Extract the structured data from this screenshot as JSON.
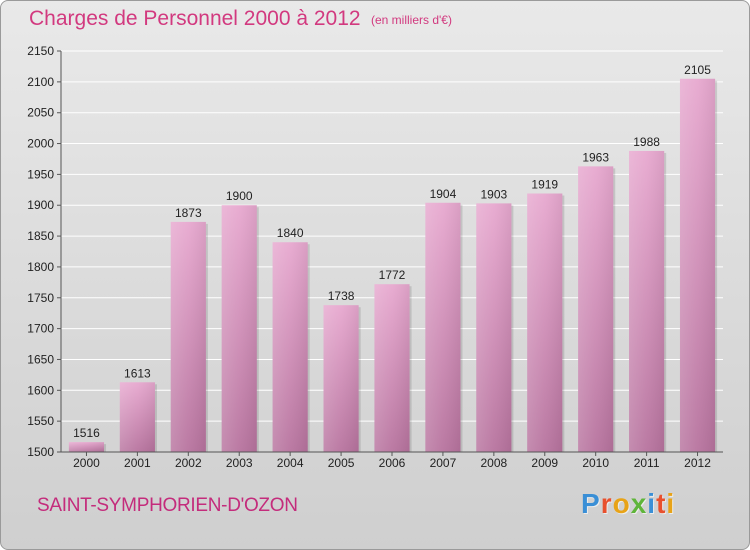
{
  "title": "Charges de Personnel 2000 à 2012",
  "subtitle": "(en milliers d'€)",
  "commune": "SAINT-SYMPHORIEN-D'OZON",
  "logo": {
    "letters": [
      "P",
      "r",
      "o",
      "x",
      "i",
      "t",
      "i"
    ],
    "colors": [
      "#3a8fd6",
      "#e8502d",
      "#e8a317",
      "#5fb53a",
      "#3a8fd6",
      "#e8502d",
      "#e8a317"
    ]
  },
  "colors": {
    "title": "#d2397f",
    "bar_top": "#e7a8cf",
    "bar_bottom": "#b7739e",
    "axis_text": "#222222"
  },
  "chart_data": {
    "type": "bar",
    "categories": [
      "2000",
      "2001",
      "2002",
      "2003",
      "2004",
      "2005",
      "2006",
      "2007",
      "2008",
      "2009",
      "2010",
      "2011",
      "2012"
    ],
    "values": [
      1516,
      1613,
      1873,
      1900,
      1840,
      1738,
      1772,
      1904,
      1903,
      1919,
      1963,
      1988,
      2105
    ],
    "ylim": [
      1500,
      2150
    ],
    "yticks": [
      1500,
      1550,
      1600,
      1650,
      1700,
      1750,
      1800,
      1850,
      1900,
      1950,
      2000,
      2050,
      2100,
      2150
    ],
    "grid": true,
    "legend": "none"
  }
}
